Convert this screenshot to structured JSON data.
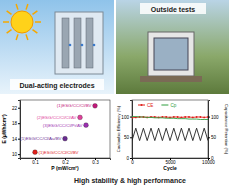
{
  "labels": {
    "left_photo": "Dual-acting electrodes",
    "right_photo": "Outside tests",
    "caption": "High stability & high performance"
  },
  "chart_data": [
    {
      "type": "scatter",
      "x_label": "P (mW/cm²)",
      "y_label": "E (μWh/cm²)",
      "xlim": [
        0.05,
        0.35
      ],
      "xticks": [
        0.1,
        0.2,
        0.3
      ],
      "ylim": [
        9,
        24
      ],
      "yticks": [
        10,
        14,
        18,
        22
      ],
      "marker": "circle",
      "series": [
        {
          "name": "(1)ESG/CC/Cl/Cl/BV",
          "color": "#e0201b",
          "x": [
            0.1
          ],
          "values": [
            10.5
          ]
        },
        {
          "name": "(1)ESG/CC/Cl/Au/BV",
          "color": "#6a2c91",
          "x": [
            0.2
          ],
          "values": [
            14
          ]
        },
        {
          "name": "(3)ESG/CC/Cl/Pt/AV",
          "color": "#9b30b0",
          "x": [
            0.27
          ],
          "values": [
            17.5
          ]
        },
        {
          "name": "(2)ESG/CC/Cl/Cl/AV",
          "color": "#e0409a",
          "x": [
            0.25
          ],
          "values": [
            19.5
          ]
        },
        {
          "name": "(1)ESG/CC/Cl/BV",
          "color": "#c2187a",
          "x": [
            0.3
          ],
          "values": [
            22.5
          ]
        }
      ]
    },
    {
      "type": "line",
      "x_label": "Cycle",
      "y_label": "Coulombic Efficiency (%)",
      "y2_label": "Capacitance Retention (%)",
      "x": [
        0,
        500,
        1000,
        1500,
        2000,
        2500,
        3000,
        3500,
        4000,
        4500,
        5000,
        5500,
        6000,
        6500,
        7000,
        7500,
        8000,
        8500,
        9000,
        9500,
        10000
      ],
      "xlim": [
        0,
        10000
      ],
      "xticks": [
        0,
        5000,
        10000
      ],
      "ylim": [
        0,
        140
      ],
      "yticks": [
        0,
        50,
        100
      ],
      "y2lim": [
        0,
        140
      ],
      "y2ticks": [
        0,
        50,
        100
      ],
      "legend": "top",
      "series": [
        {
          "name": "CE",
          "color": "#e0201b",
          "marker": "circle",
          "values": [
            97,
            98,
            99,
            99,
            98,
            99,
            99,
            98,
            99,
            99,
            98,
            99,
            99,
            98,
            99,
            99,
            98,
            99,
            99,
            98,
            99
          ]
        },
        {
          "name": "Cp",
          "color": "#2e9e3e",
          "axis": "y2",
          "values": [
            100,
            100,
            99,
            99,
            98,
            98,
            97,
            97,
            97,
            96,
            96,
            96,
            95,
            95,
            95,
            94,
            94,
            94,
            93,
            93,
            93
          ]
        },
        {
          "color": "#222222",
          "values": [
            42,
            72,
            42,
            72,
            42,
            72,
            42,
            72,
            42,
            72,
            42,
            72,
            42,
            72,
            42,
            72,
            42,
            72,
            42,
            72,
            42
          ]
        }
      ]
    }
  ]
}
